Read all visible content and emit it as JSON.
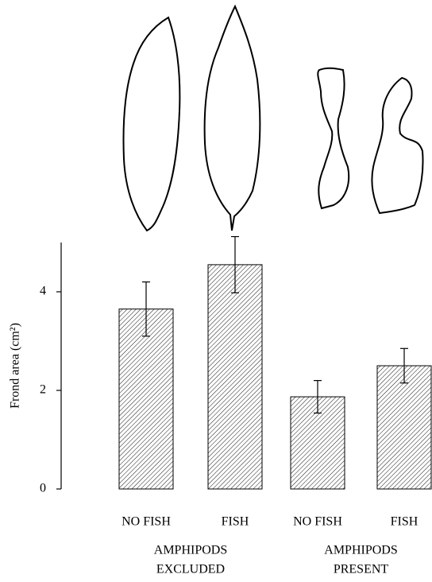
{
  "chart_data": {
    "type": "bar",
    "y_label": "Frond area (cm²)",
    "categories": [
      "NO FISH",
      "FISH",
      "NO FISH",
      "FISH"
    ],
    "values": [
      3.65,
      4.55,
      1.87,
      2.5
    ],
    "errors": [
      0.55,
      0.57,
      0.33,
      0.35
    ],
    "groups": [
      [
        "AMPHIPODS",
        "EXCLUDED"
      ],
      [
        "AMPHIPODS",
        "PRESENT"
      ]
    ],
    "color": "#000000",
    "ylim": [
      0,
      5
    ],
    "yticks": [
      0,
      2,
      4
    ]
  }
}
